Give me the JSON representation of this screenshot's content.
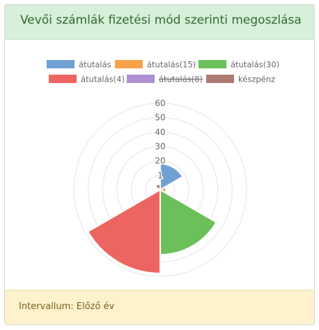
{
  "panel": {
    "title": "Vevői számlák fizetési mód szerinti megoszlása",
    "footer_text": "Intervallum: Előző év"
  },
  "chart_data": {
    "type": "polarArea",
    "title": "",
    "categories": [
      "átutalás",
      "átutalás(15)",
      "átutalás(30)",
      "átutalás(4)",
      "átutalás(8)",
      "készpénz"
    ],
    "values": [
      18,
      4,
      45,
      58,
      0,
      4
    ],
    "hidden": [
      false,
      false,
      false,
      false,
      true,
      false
    ],
    "colors": [
      "#71a0d3",
      "#f8a24a",
      "#6cc05a",
      "#ed6560",
      "#b08fd1",
      "#ad7b72"
    ],
    "radial_ticks": [
      "1",
      "20",
      "30",
      "40",
      "50",
      "60"
    ],
    "rmax": 60,
    "grid": true,
    "legend_position": "top"
  }
}
